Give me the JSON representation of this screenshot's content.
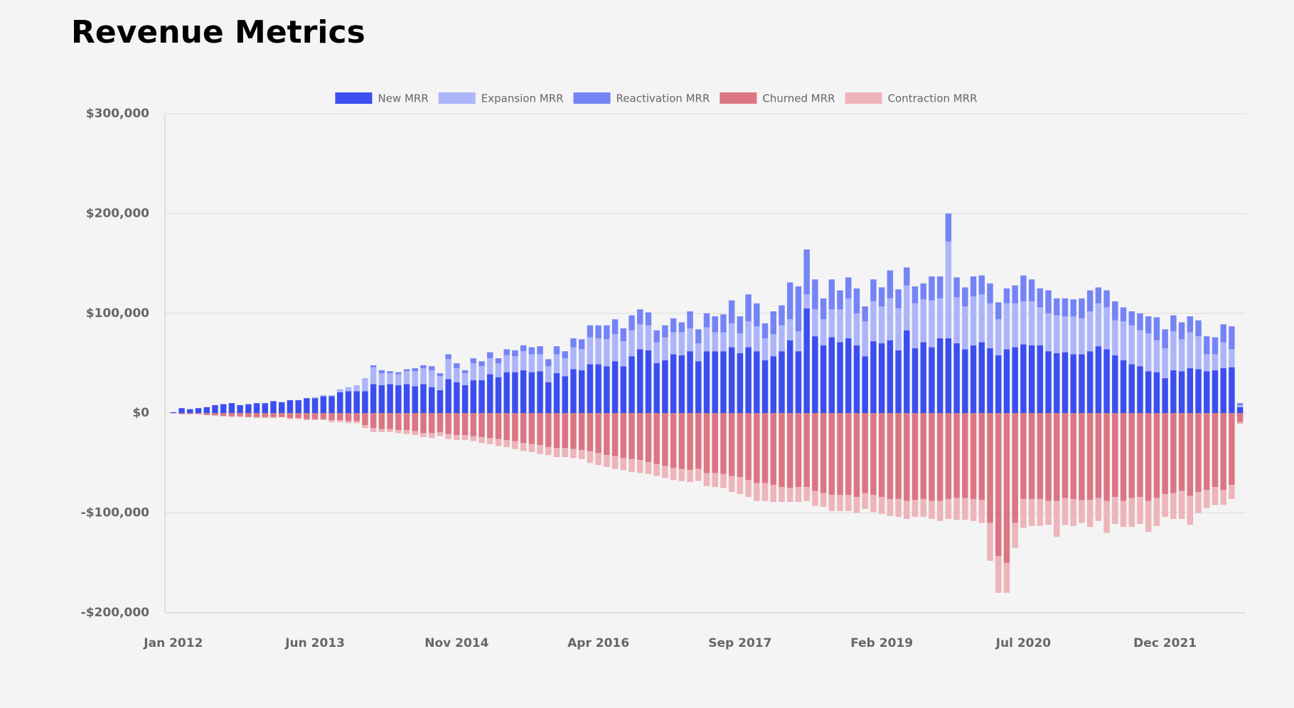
{
  "chart_data": {
    "type": "stacked-bar",
    "title": "Revenue Metrics",
    "categories": [
      "Jan 2012",
      null,
      null,
      null,
      null,
      null,
      null,
      null,
      null,
      null,
      null,
      null,
      null,
      null,
      null,
      null,
      null,
      "Jun 2013",
      null,
      null,
      null,
      null,
      null,
      null,
      null,
      null,
      null,
      null,
      null,
      null,
      null,
      null,
      null,
      null,
      "Nov 2014",
      null,
      null,
      null,
      null,
      null,
      null,
      null,
      null,
      null,
      null,
      null,
      null,
      null,
      null,
      null,
      null,
      "Apr 2016",
      null,
      null,
      null,
      null,
      null,
      null,
      null,
      null,
      null,
      null,
      null,
      null,
      null,
      null,
      null,
      null,
      "Sep 2017",
      null,
      null,
      null,
      null,
      null,
      null,
      null,
      null,
      null,
      null,
      null,
      null,
      null,
      null,
      null,
      null,
      "Feb 2019",
      null,
      null,
      null,
      null,
      null,
      null,
      null,
      null,
      null,
      null,
      null,
      null,
      null,
      null,
      null,
      null,
      "Jul 2020",
      null,
      null,
      null,
      null,
      null,
      null,
      null,
      null,
      null,
      null,
      null,
      null,
      null,
      null,
      null,
      null,
      "Dec 2021",
      null,
      null,
      null,
      null,
      null,
      null,
      null,
      null,
      null
    ],
    "series": [
      {
        "name": "New MRR",
        "color": "#3b4ef0",
        "values": [
          1000,
          5000,
          4000,
          5000,
          6000,
          8000,
          9000,
          10000,
          8000,
          9000,
          10000,
          10000,
          12000,
          11000,
          13000,
          13000,
          15000,
          15000,
          17000,
          17000,
          21000,
          22000,
          22000,
          22000,
          29000,
          28000,
          29000,
          28000,
          29000,
          27000,
          29000,
          26000,
          23000,
          34000,
          31000,
          28000,
          33000,
          33000,
          39000,
          36000,
          41000,
          41000,
          43000,
          41000,
          42000,
          31000,
          40000,
          37000,
          44000,
          43000,
          49000,
          49000,
          47000,
          52000,
          47000,
          57000,
          64000,
          63000,
          50000,
          53000,
          59000,
          58000,
          62000,
          52000,
          62000,
          62000,
          62000,
          66000,
          60000,
          66000,
          62000,
          53000,
          57000,
          62000,
          73000,
          62000,
          105000,
          77000,
          68000,
          76000,
          71000,
          75000,
          68000,
          57000,
          72000,
          70000,
          73000,
          63000,
          83000,
          65000,
          71000,
          66000,
          75000,
          75000,
          70000,
          64000,
          68000,
          71000,
          65000,
          58000,
          64000,
          66000,
          69000,
          68000,
          68000,
          62000,
          60000,
          61000,
          59000,
          59000,
          62000,
          67000,
          64000,
          58000,
          53000,
          49000,
          47000,
          42000,
          41000,
          35000,
          43000,
          42000,
          45000,
          44000,
          42000,
          43000,
          45000,
          46000,
          6000
        ]
      },
      {
        "name": "Expansion MRR",
        "color": "#adb5fa",
        "values": [
          0,
          0,
          0,
          0,
          0,
          0,
          0,
          0,
          0,
          0,
          0,
          0,
          0,
          0,
          0,
          0,
          0,
          1000,
          1000,
          1000,
          3000,
          4000,
          6000,
          13000,
          17000,
          12000,
          11000,
          11000,
          13000,
          15000,
          16000,
          17000,
          14000,
          20000,
          14000,
          12000,
          17000,
          14000,
          16000,
          14000,
          17000,
          16000,
          19000,
          18000,
          17000,
          16000,
          19000,
          18000,
          22000,
          21000,
          27000,
          26000,
          27000,
          27000,
          25000,
          26000,
          25000,
          25000,
          21000,
          23000,
          22000,
          23000,
          23000,
          18000,
          24000,
          19000,
          19000,
          24000,
          20000,
          26000,
          25000,
          22000,
          22000,
          26000,
          21000,
          20000,
          14000,
          27000,
          26000,
          28000,
          33000,
          40000,
          32000,
          35000,
          40000,
          37000,
          42000,
          42000,
          45000,
          45000,
          43000,
          47000,
          40000,
          97000,
          46000,
          43000,
          49000,
          48000,
          45000,
          36000,
          46000,
          44000,
          43000,
          44000,
          38000,
          38000,
          38000,
          36000,
          38000,
          36000,
          40000,
          43000,
          42000,
          35000,
          39000,
          39000,
          36000,
          38000,
          32000,
          30000,
          39000,
          32000,
          36000,
          33000,
          17000,
          16000,
          26000,
          18000,
          2000
        ]
      },
      {
        "name": "Reactivation MRR",
        "color": "#7584f5",
        "values": [
          0,
          0,
          0,
          0,
          0,
          0,
          0,
          0,
          0,
          0,
          0,
          0,
          0,
          0,
          0,
          0,
          0,
          0,
          0,
          0,
          0,
          0,
          0,
          0,
          2000,
          3000,
          2000,
          2000,
          2000,
          3000,
          3000,
          4000,
          3000,
          5000,
          5000,
          3000,
          5000,
          5000,
          6000,
          5000,
          6000,
          6000,
          6000,
          7000,
          8000,
          7000,
          8000,
          7000,
          9000,
          10000,
          12000,
          13000,
          14000,
          15000,
          13000,
          15000,
          15000,
          13000,
          12000,
          12000,
          14000,
          10000,
          17000,
          14000,
          14000,
          16000,
          18000,
          23000,
          17000,
          27000,
          23000,
          15000,
          23000,
          20000,
          37000,
          45000,
          45000,
          30000,
          21000,
          30000,
          19000,
          21000,
          25000,
          15000,
          22000,
          19000,
          28000,
          19000,
          18000,
          17000,
          16000,
          24000,
          22000,
          28000,
          20000,
          19000,
          20000,
          19000,
          20000,
          17000,
          15000,
          18000,
          26000,
          22000,
          19000,
          23000,
          17000,
          18000,
          17000,
          20000,
          21000,
          16000,
          17000,
          19000,
          14000,
          14000,
          17000,
          17000,
          23000,
          19000,
          16000,
          17000,
          16000,
          16000,
          18000,
          17000,
          18000,
          23000,
          2000
        ]
      },
      {
        "name": "Churned MRR",
        "color": "#db7582",
        "values": [
          0,
          -1000,
          -1000,
          -1000,
          -2000,
          -2000,
          -3000,
          -3000,
          -3000,
          -4000,
          -4000,
          -4000,
          -4000,
          -4000,
          -5000,
          -5000,
          -6000,
          -6000,
          -6000,
          -7000,
          -7000,
          -8000,
          -8000,
          -12000,
          -15000,
          -16000,
          -16000,
          -17000,
          -17000,
          -18000,
          -20000,
          -20000,
          -19000,
          -21000,
          -22000,
          -22000,
          -23000,
          -24000,
          -25000,
          -26000,
          -27000,
          -28000,
          -30000,
          -31000,
          -32000,
          -34000,
          -35000,
          -35000,
          -36000,
          -37000,
          -38000,
          -40000,
          -42000,
          -43000,
          -45000,
          -46000,
          -47000,
          -49000,
          -51000,
          -53000,
          -55000,
          -56000,
          -57000,
          -56000,
          -60000,
          -60000,
          -61000,
          -63000,
          -64000,
          -67000,
          -70000,
          -70000,
          -72000,
          -74000,
          -75000,
          -74000,
          -74000,
          -78000,
          -80000,
          -82000,
          -82000,
          -82000,
          -84000,
          -80000,
          -82000,
          -84000,
          -86000,
          -86000,
          -88000,
          -87000,
          -86000,
          -88000,
          -88000,
          -86000,
          -85000,
          -85000,
          -86000,
          -87000,
          -110000,
          -143000,
          -150000,
          -110000,
          -86000,
          -86000,
          -86000,
          -88000,
          -88000,
          -85000,
          -86000,
          -87000,
          -87000,
          -85000,
          -88000,
          -84000,
          -88000,
          -85000,
          -84000,
          -88000,
          -85000,
          -81000,
          -80000,
          -78000,
          -83000,
          -79000,
          -77000,
          -74000,
          -77000,
          -72000,
          -9000
        ]
      },
      {
        "name": "Contraction MRR",
        "color": "#edb4ba",
        "values": [
          0,
          0,
          0,
          0,
          0,
          -1000,
          0,
          -1000,
          -1000,
          0,
          -1000,
          -1000,
          -1000,
          0,
          -1000,
          -1000,
          -1000,
          -1000,
          -1000,
          -2000,
          -2000,
          -2000,
          -2000,
          -3000,
          -4000,
          -3000,
          -3000,
          -3000,
          -4000,
          -4000,
          -4000,
          -5000,
          -4000,
          -5000,
          -5000,
          -5000,
          -5000,
          -6000,
          -6000,
          -7000,
          -7000,
          -8000,
          -8000,
          -8000,
          -9000,
          -8000,
          -9000,
          -9000,
          -9000,
          -9000,
          -12000,
          -12000,
          -12000,
          -13000,
          -12000,
          -13000,
          -13000,
          -12000,
          -12000,
          -12000,
          -12000,
          -12000,
          -12000,
          -12000,
          -13000,
          -14000,
          -14000,
          -16000,
          -17000,
          -17000,
          -18000,
          -18000,
          -17000,
          -15000,
          -14000,
          -15000,
          -14000,
          -15000,
          -14000,
          -16000,
          -16000,
          -16000,
          -16000,
          -16000,
          -17000,
          -17000,
          -17000,
          -18000,
          -18000,
          -17000,
          -18000,
          -18000,
          -20000,
          -20000,
          -22000,
          -22000,
          -22000,
          -23000,
          -38000,
          -37000,
          -30000,
          -25000,
          -29000,
          -27000,
          -27000,
          -24000,
          -36000,
          -27000,
          -27000,
          -23000,
          -27000,
          -23000,
          -32000,
          -27000,
          -26000,
          -29000,
          -27000,
          -31000,
          -28000,
          -23000,
          -26000,
          -28000,
          -29000,
          -21000,
          -18000,
          -18000,
          -15000,
          -14000,
          -2000
        ]
      }
    ],
    "ylim": [
      -200000,
      300000
    ],
    "yticks": [
      {
        "value": -200000,
        "label": "-$200,000"
      },
      {
        "value": -100000,
        "label": "-$100,000"
      },
      {
        "value": 0,
        "label": "$0"
      },
      {
        "value": 100000,
        "label": "$100,000"
      },
      {
        "value": 200000,
        "label": "$200,000"
      },
      {
        "value": 300000,
        "label": "$300,000"
      }
    ],
    "grid": true,
    "legend": "top"
  }
}
